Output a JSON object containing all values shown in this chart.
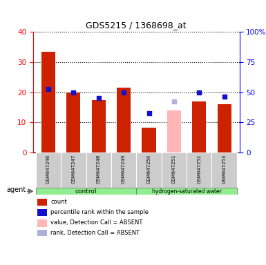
{
  "title": "GDS5215 / 1368698_at",
  "samples": [
    "GSM647246",
    "GSM647247",
    "GSM647248",
    "GSM647249",
    "GSM647250",
    "GSM647251",
    "GSM647252",
    "GSM647253"
  ],
  "red_values": [
    33.5,
    20.0,
    17.5,
    21.5,
    8.2,
    null,
    17.0,
    16.0
  ],
  "blue_values": [
    21.0,
    20.0,
    18.0,
    20.0,
    13.0,
    null,
    20.0,
    18.5
  ],
  "pink_values": [
    null,
    null,
    null,
    null,
    null,
    14.0,
    null,
    null
  ],
  "lightblue_values": [
    null,
    null,
    null,
    null,
    null,
    17.0,
    null,
    null
  ],
  "ylim_left": [
    0,
    40
  ],
  "ylim_right": [
    0,
    100
  ],
  "yticks_left": [
    0,
    10,
    20,
    30,
    40
  ],
  "yticks_right": [
    0,
    25,
    50,
    75,
    100
  ],
  "ytick_labels_right": [
    "0",
    "25",
    "50",
    "75",
    "100%"
  ],
  "red_color": "#cc2200",
  "blue_color": "#1111cc",
  "pink_color": "#ffb6b6",
  "lightblue_color": "#b0b0dd",
  "agent_label": "agent",
  "ctrl_label": "control",
  "hydro_label": "hydrogen-saturated water",
  "legend_items": [
    {
      "color": "#cc2200",
      "label": "count"
    },
    {
      "color": "#1111cc",
      "label": "percentile rank within the sample"
    },
    {
      "color": "#ffb6b6",
      "label": "value, Detection Call = ABSENT"
    },
    {
      "color": "#b0b0dd",
      "label": "rank, Detection Call = ABSENT"
    }
  ]
}
